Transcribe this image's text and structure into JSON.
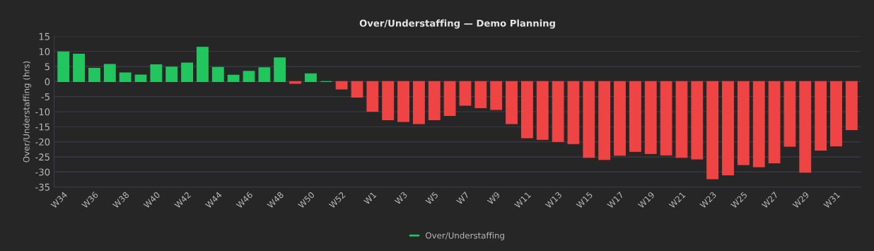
{
  "chart_data": {
    "type": "bar",
    "title": "Over/Understaffing — Demo Planning",
    "ylabel": "Over/Understaffing (hrs)",
    "categories": [
      "W34",
      null,
      "W36",
      null,
      "W38",
      null,
      "W40",
      null,
      "W42",
      null,
      "W44",
      null,
      "W46",
      null,
      "W48",
      null,
      "W50",
      null,
      "W52",
      null,
      "W1",
      null,
      "W3",
      null,
      "W5",
      null,
      "W7",
      null,
      "W9",
      null,
      "W11",
      null,
      "W13",
      null,
      "W15",
      null,
      "W17",
      null,
      "W19",
      null,
      "W21",
      null,
      "W23",
      null,
      "W25",
      null,
      "W27",
      null,
      "W29",
      null,
      "W31",
      null
    ],
    "series": [
      {
        "name": "Over/Understaffing",
        "color": "#22c55e",
        "values": [
          9.9,
          9.1,
          4.4,
          5.7,
          2.9,
          2.2,
          5.6,
          4.8,
          6.2,
          11.4,
          4.7,
          2.1,
          3.4,
          4.6,
          7.9,
          -0.6,
          2.6,
          0,
          -2.5,
          -5.2,
          -9.9,
          -12.7,
          -13.3,
          -14.0,
          -12.7,
          -11.3,
          -7.9,
          -8.7,
          -9.3,
          -14.0,
          -18.7,
          -19.2,
          -19.9,
          -20.6,
          -25.2,
          -25.9,
          -24.5,
          -23.2,
          -23.9,
          -24.4,
          -25.2,
          -25.7,
          -32.3,
          -31.0,
          -27.6,
          -28.3,
          -27.0,
          -21.5,
          -30.1,
          -22.8,
          -21.4,
          -16.0
        ],
        "colors": [
          "#22c55e",
          "#22c55e",
          "#22c55e",
          "#22c55e",
          "#22c55e",
          "#22c55e",
          "#22c55e",
          "#22c55e",
          "#22c55e",
          "#22c55e",
          "#22c55e",
          "#22c55e",
          "#22c55e",
          "#22c55e",
          "#22c55e",
          "#ef4444",
          "#22c55e",
          "#22c55e",
          "#ef4444",
          "#ef4444",
          "#ef4444",
          "#ef4444",
          "#ef4444",
          "#ef4444",
          "#ef4444",
          "#ef4444",
          "#ef4444",
          "#ef4444",
          "#ef4444",
          "#ef4444",
          "#ef4444",
          "#ef4444",
          "#ef4444",
          "#ef4444",
          "#ef4444",
          "#ef4444",
          "#ef4444",
          "#ef4444",
          "#ef4444",
          "#ef4444",
          "#ef4444",
          "#ef4444",
          "#ef4444",
          "#ef4444",
          "#ef4444",
          "#ef4444",
          "#ef4444",
          "#ef4444",
          "#ef4444",
          "#ef4444",
          "#ef4444",
          "#ef4444"
        ]
      }
    ],
    "ylim": [
      -35,
      15
    ],
    "yticks": [
      -35,
      -30,
      -25,
      -20,
      -15,
      -10,
      -5,
      0,
      5,
      10,
      15
    ],
    "grid": "y",
    "legend": "bottom"
  }
}
